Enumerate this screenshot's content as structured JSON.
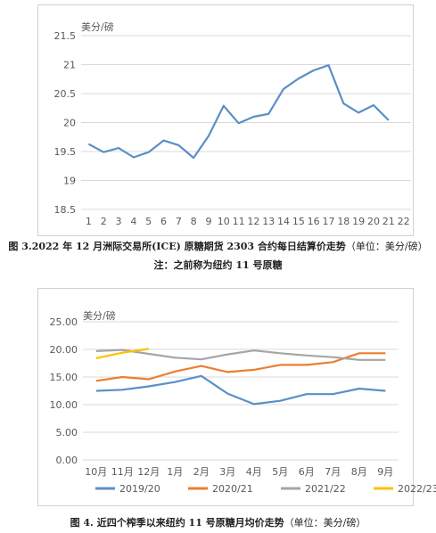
{
  "chart_data": [
    {
      "type": "line",
      "title": "",
      "unit_label": "美分/磅",
      "x": [
        1,
        2,
        3,
        4,
        5,
        6,
        7,
        8,
        9,
        10,
        11,
        12,
        13,
        14,
        15,
        16,
        17,
        18,
        19,
        20,
        21,
        22
      ],
      "series": [
        {
          "name": "",
          "color": "#5b8fc7",
          "values": [
            19.63,
            19.49,
            19.56,
            19.4,
            19.49,
            19.69,
            19.61,
            19.39,
            19.77,
            20.29,
            19.99,
            20.1,
            20.15,
            20.58,
            20.76,
            20.9,
            20.99,
            20.33,
            20.17,
            20.3,
            20.04,
            null
          ]
        }
      ],
      "ylim": [
        18.5,
        21.5
      ],
      "yticks": [
        "18.5",
        "19",
        "19.5",
        "20",
        "20.5",
        "21",
        "21.5"
      ],
      "ytick_values": [
        18.5,
        19,
        19.5,
        20,
        20.5,
        21,
        21.5
      ],
      "grid": true,
      "legend": "none"
    },
    {
      "type": "line",
      "title": "",
      "unit_label": "美分/磅",
      "categories": [
        "10月",
        "11月",
        "12月",
        "1月",
        "2月",
        "3月",
        "4月",
        "5月",
        "6月",
        "7月",
        "8月",
        "9月"
      ],
      "series": [
        {
          "name": "2019/20",
          "color": "#5b8fc7",
          "values": [
            12.5,
            12.7,
            13.3,
            14.1,
            15.2,
            12.0,
            10.1,
            10.7,
            11.9,
            11.9,
            12.9,
            12.5
          ]
        },
        {
          "name": "2020/21",
          "color": "#ed7d31",
          "values": [
            14.3,
            15.0,
            14.6,
            16.0,
            17.0,
            15.9,
            16.3,
            17.2,
            17.2,
            17.7,
            19.3,
            19.3
          ]
        },
        {
          "name": "2021/22",
          "color": "#a5a5a5",
          "values": [
            19.7,
            19.9,
            19.2,
            18.5,
            18.2,
            19.1,
            19.8,
            19.3,
            18.9,
            18.6,
            18.1,
            18.1
          ]
        },
        {
          "name": "2022/23",
          "color": "#ffc000",
          "values": [
            18.4,
            19.4,
            20.1,
            null,
            null,
            null,
            null,
            null,
            null,
            null,
            null,
            null
          ]
        }
      ],
      "ylim": [
        0,
        25
      ],
      "yticks": [
        "0.00",
        "5.00",
        "10.00",
        "15.00",
        "20.00",
        "25.00"
      ],
      "ytick_values": [
        0,
        5,
        10,
        15,
        20,
        25
      ],
      "grid": true,
      "legend": "bottom"
    }
  ],
  "captions": {
    "fig3": "图 3.2022 年 12 月洲际交易所(ICE) 原糖期货 2303 合约每日结算价走势",
    "fig3_unit": "（单位：美分/磅）",
    "fig3_note": "注：之前称为纽约 11 号原糖",
    "fig4": "图 4. 近四个榨季以来纽约 11 号原糖月均价走势",
    "fig4_unit": "（单位：美分/磅）"
  }
}
